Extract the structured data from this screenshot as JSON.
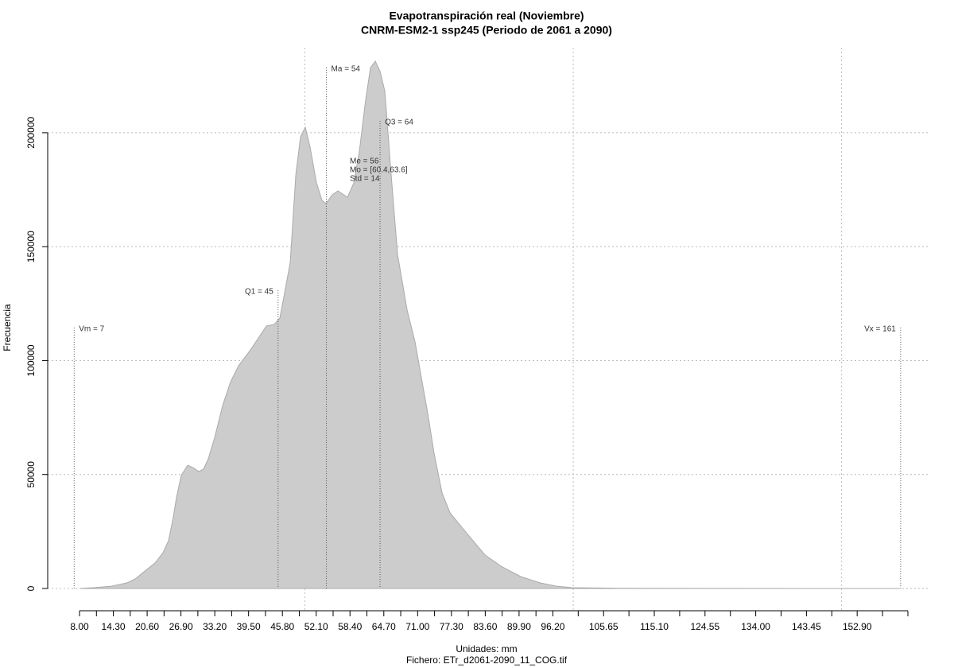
{
  "chart_data": {
    "type": "area",
    "title": "Evapotranspiración real (Noviembre)",
    "subtitle": "CNRM-ESM2-1 ssp245 (Periodo de 2061 a 2090)",
    "x_label": "Unidades: mm",
    "caption": "Fichero: ETr_d2061-2090_11_COG.tif",
    "y_label": "Frecuencia",
    "x": [
      8.0,
      10.96,
      13.93,
      16.89,
      18.37,
      19.85,
      22.07,
      23.56,
      24.59,
      25.48,
      26.07,
      26.96,
      28.15,
      29.19,
      30.22,
      31.11,
      32.0,
      33.19,
      34.67,
      36.15,
      37.63,
      39.85,
      41.33,
      42.81,
      44.3,
      45.33,
      46.22,
      47.26,
      48.3,
      49.19,
      50.07,
      50.96,
      52.15,
      53.19,
      53.93,
      55.11,
      56.15,
      57.93,
      59.11,
      60.15,
      61.33,
      62.22,
      63.11,
      64.0,
      64.89,
      66.07,
      67.26,
      69.04,
      70.52,
      71.7,
      72.89,
      74.07,
      75.56,
      77.04,
      79.11,
      81.33,
      83.56,
      86.52,
      90.22,
      93.93,
      96.89,
      99.85,
      108.74,
      126.52,
      160.59
    ],
    "series": [
      {
        "name": "Frecuencia",
        "color": "#cccccc",
        "values": [
          0,
          400,
          1000,
          2500,
          4200,
          7000,
          11200,
          15700,
          21000,
          31400,
          40000,
          49600,
          54100,
          53000,
          51300,
          52400,
          56900,
          66300,
          80300,
          90700,
          97700,
          104700,
          109900,
          115200,
          115900,
          118700,
          129800,
          143100,
          181500,
          198300,
          202400,
          193700,
          178000,
          170300,
          168900,
          172800,
          174500,
          171700,
          178000,
          192000,
          214700,
          228600,
          231400,
          226900,
          218200,
          181500,
          146600,
          122200,
          108200,
          92500,
          76800,
          59300,
          41900,
          33200,
          27200,
          20900,
          14700,
          9800,
          5200,
          2400,
          1000,
          350,
          100,
          30,
          0
        ]
      }
    ],
    "xlim": [
      2.07,
      166.5
    ],
    "ylim": [
      -9770,
      237300
    ],
    "xticks": [
      {
        "value": 8,
        "label": "8.00"
      },
      {
        "value": 14.3,
        "label": "14.30"
      },
      {
        "value": 20.6,
        "label": "20.60"
      },
      {
        "value": 26.9,
        "label": "26.90"
      },
      {
        "value": 33.2,
        "label": "33.20"
      },
      {
        "value": 39.5,
        "label": "39.50"
      },
      {
        "value": 45.8,
        "label": "45.80"
      },
      {
        "value": 52.1,
        "label": "52.10"
      },
      {
        "value": 58.4,
        "label": "58.40"
      },
      {
        "value": 64.7,
        "label": "64.70"
      },
      {
        "value": 71,
        "label": "71.00"
      },
      {
        "value": 77.3,
        "label": "77.30"
      },
      {
        "value": 83.6,
        "label": "83.60"
      },
      {
        "value": 89.9,
        "label": "89.90"
      },
      {
        "value": 96.2,
        "label": "96.20"
      },
      {
        "value": 105.65,
        "label": "105.65"
      },
      {
        "value": 115.1,
        "label": "115.10"
      },
      {
        "value": 124.55,
        "label": "124.55"
      },
      {
        "value": 134,
        "label": "134.00"
      },
      {
        "value": 143.45,
        "label": "143.45"
      },
      {
        "value": 152.9,
        "label": "152.90"
      }
    ],
    "xminorticks": [
      11.15,
      17.45,
      23.75,
      30.05,
      36.35,
      42.65,
      48.95,
      55.25,
      61.55,
      67.85,
      74.15,
      80.45,
      86.75,
      93.05,
      100.925,
      110.375,
      119.825,
      129.275,
      138.725,
      148.175,
      157.625,
      162.35
    ],
    "xgrid": [
      50,
      100,
      150
    ],
    "yticks": [
      0,
      50000,
      100000,
      150000,
      200000
    ],
    "grid": true,
    "annotations": [
      {
        "label": "Vm = 7",
        "x": 7,
        "y": 114500
      },
      {
        "label": "Q1 = 45",
        "x": 45,
        "y": 130900
      },
      {
        "label": "Ma = 54",
        "x": 54,
        "y": 228600
      },
      {
        "label": "Q3 = 64",
        "x": 64,
        "y": 205200
      },
      {
        "label": "Vx = 161",
        "x": 161,
        "y": 114500
      }
    ],
    "stats": [
      "Me = 56",
      "Mo = [60.4,63.6]",
      "Std = 14"
    ]
  }
}
